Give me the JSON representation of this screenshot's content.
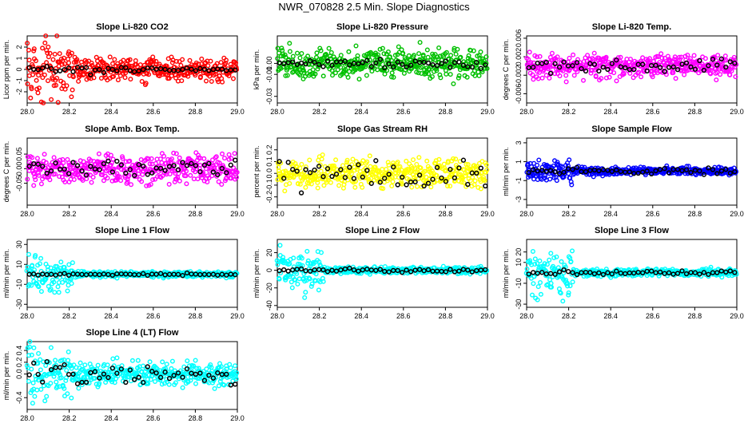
{
  "page": {
    "title": "NWR_070828  2.5 Min. Slope Diagnostics"
  },
  "colors": {
    "frame": "#000000",
    "reference": "#000000"
  },
  "chart_data": [
    {
      "type": "scatter",
      "title": "Slope Li-820 CO2",
      "ylabel": "Licor ppm per min.",
      "color": "#ff0000",
      "xlim": [
        28.0,
        29.0
      ],
      "ylim": [
        -3.0,
        3.0
      ],
      "xticks": [
        28.0,
        28.2,
        28.4,
        28.6,
        28.8,
        29.0
      ],
      "xtick_labels": [
        "28.0",
        "28.2",
        "28.4",
        "28.6",
        "28.8",
        "29.0"
      ],
      "yticks": [
        -2,
        -1,
        0,
        1,
        2
      ],
      "ytick_labels": [
        "-2",
        "-1",
        "0",
        "1",
        "2"
      ],
      "spread": 0.75,
      "black_spread": 0.25
    },
    {
      "type": "scatter",
      "title": "Slope Li-820 Pressure",
      "ylabel": "kPa per min.",
      "color": "#00c000",
      "xlim": [
        28.0,
        29.0
      ],
      "ylim": [
        -0.036,
        0.025
      ],
      "xticks": [
        28.0,
        28.2,
        28.4,
        28.6,
        28.8,
        29.0
      ],
      "xtick_labels": [
        "28.0",
        "28.2",
        "28.4",
        "28.6",
        "28.8",
        "29.0"
      ],
      "yticks": [
        -0.03,
        -0.01,
        0.0
      ],
      "ytick_labels": [
        "-0.03",
        "-0.01",
        "0.00"
      ],
      "spread": 0.009,
      "black_spread": 0.003
    },
    {
      "type": "scatter",
      "title": "Slope Li-820 Temp.",
      "ylabel": "degrees C per min.",
      "color": "#ff00ff",
      "xlim": [
        28.0,
        29.0
      ],
      "ylim": [
        -0.008,
        0.0065
      ],
      "xticks": [
        28.0,
        28.2,
        28.4,
        28.6,
        28.8,
        29.0
      ],
      "xtick_labels": [
        "28.0",
        "28.2",
        "28.4",
        "28.6",
        "28.8",
        "29.0"
      ],
      "yticks": [
        -0.006,
        -0.002,
        0.002,
        0.006
      ],
      "ytick_labels": [
        "-0.006",
        "-0.002",
        "0.002",
        "0.006"
      ],
      "spread": 0.0018,
      "black_spread": 0.0012
    },
    {
      "type": "scatter",
      "title": "Slope Amb. Box Temp.",
      "ylabel": "degrees C per min.",
      "color": "#ff00ff",
      "xlim": [
        28.0,
        29.0
      ],
      "ylim": [
        -0.125,
        0.105
      ],
      "xticks": [
        28.0,
        28.2,
        28.4,
        28.6,
        28.8,
        29.0
      ],
      "xtick_labels": [
        "28.0",
        "28.2",
        "28.4",
        "28.6",
        "28.8",
        "29.0"
      ],
      "yticks": [
        -0.05,
        0.0,
        0.05
      ],
      "ytick_labels": [
        "-0.05",
        "0.00",
        "0.05"
      ],
      "spread": 0.035,
      "black_spread": 0.02
    },
    {
      "type": "scatter",
      "title": "Slope Gas Stream RH",
      "ylabel": "percent per min.",
      "color": "#ffff00",
      "xlim": [
        28.0,
        29.0
      ],
      "ylim": [
        -0.27,
        0.3
      ],
      "xticks": [
        28.0,
        28.2,
        28.4,
        28.6,
        28.8,
        29.0
      ],
      "xtick_labels": [
        "28.0",
        "28.2",
        "28.4",
        "28.6",
        "28.8",
        "29.0"
      ],
      "yticks": [
        -0.2,
        -0.1,
        0.0,
        0.1,
        0.2
      ],
      "ytick_labels": [
        "-0.2",
        "-0.1",
        "0.0",
        "0.1",
        "0.2"
      ],
      "spread": 0.09,
      "black_spread": 0.09
    },
    {
      "type": "scatter",
      "title": "Slope Sample Flow",
      "ylabel": "ml/min per min.",
      "color": "#0000ff",
      "xlim": [
        28.0,
        29.0
      ],
      "ylim": [
        -3.6,
        3.5
      ],
      "xticks": [
        28.0,
        28.2,
        28.4,
        28.6,
        28.8,
        29.0
      ],
      "xtick_labels": [
        "28.0",
        "28.2",
        "28.4",
        "28.6",
        "28.8",
        "29.0"
      ],
      "yticks": [
        -3,
        -1,
        1,
        3
      ],
      "ytick_labels": [
        "-3",
        "-1",
        "1",
        "3"
      ],
      "spread": 0.3,
      "black_spread": 0.25
    },
    {
      "type": "scatter",
      "title": "Slope Line 1 Flow",
      "ylabel": "ml/min per min.",
      "color": "#00ffff",
      "xlim": [
        28.0,
        29.0
      ],
      "ylim": [
        -33,
        35
      ],
      "xticks": [
        28.0,
        28.2,
        28.4,
        28.6,
        28.8,
        29.0
      ],
      "xtick_labels": [
        "28.0",
        "28.2",
        "28.4",
        "28.6",
        "28.8",
        "29.0"
      ],
      "yticks": [
        -30,
        -10,
        10,
        30
      ],
      "ytick_labels": [
        "-30",
        "-10",
        "10",
        "30"
      ],
      "spread": 2.0,
      "black_spread": 0.8
    },
    {
      "type": "scatter",
      "title": "Slope Line 2 Flow",
      "ylabel": "ml/min per min.",
      "color": "#00ffff",
      "xlim": [
        28.0,
        29.0
      ],
      "ylim": [
        -42,
        35
      ],
      "xticks": [
        28.0,
        28.2,
        28.4,
        28.6,
        28.8,
        29.0
      ],
      "xtick_labels": [
        "28.0",
        "28.2",
        "28.4",
        "28.6",
        "28.8",
        "29.0"
      ],
      "yticks": [
        -40,
        -20,
        0,
        20
      ],
      "ytick_labels": [
        "-40",
        "-20",
        "0",
        "20"
      ],
      "spread": 2.5,
      "black_spread": 1.5
    },
    {
      "type": "scatter",
      "title": "Slope Line 3 Flow",
      "ylabel": "ml/min per min.",
      "color": "#00ffff",
      "xlim": [
        28.0,
        29.0
      ],
      "ylim": [
        -33,
        32
      ],
      "xticks": [
        28.0,
        28.2,
        28.4,
        28.6,
        28.8,
        29.0
      ],
      "xtick_labels": [
        "28.0",
        "28.2",
        "28.4",
        "28.6",
        "28.8",
        "29.0"
      ],
      "yticks": [
        -30,
        -10,
        10,
        20
      ],
      "ytick_labels": [
        "-30",
        "-10",
        "10",
        "20"
      ],
      "spread": 2.5,
      "black_spread": 1.5
    },
    {
      "type": "scatter",
      "title": "Slope Line 4 (LT) Flow",
      "ylabel": "ml/min per min.",
      "color": "#00ffff",
      "xlim": [
        28.0,
        29.0
      ],
      "ylim": [
        -0.6,
        0.55
      ],
      "xticks": [
        28.0,
        28.2,
        28.4,
        28.6,
        28.8,
        29.0
      ],
      "xtick_labels": [
        "28.0",
        "28.2",
        "28.4",
        "28.6",
        "28.8",
        "29.0"
      ],
      "yticks": [
        -0.4,
        0.0,
        0.2,
        0.4
      ],
      "ytick_labels": [
        "-0.4",
        "0.0",
        "0.2",
        "0.4"
      ],
      "spread": 0.14,
      "black_spread": 0.14
    }
  ]
}
